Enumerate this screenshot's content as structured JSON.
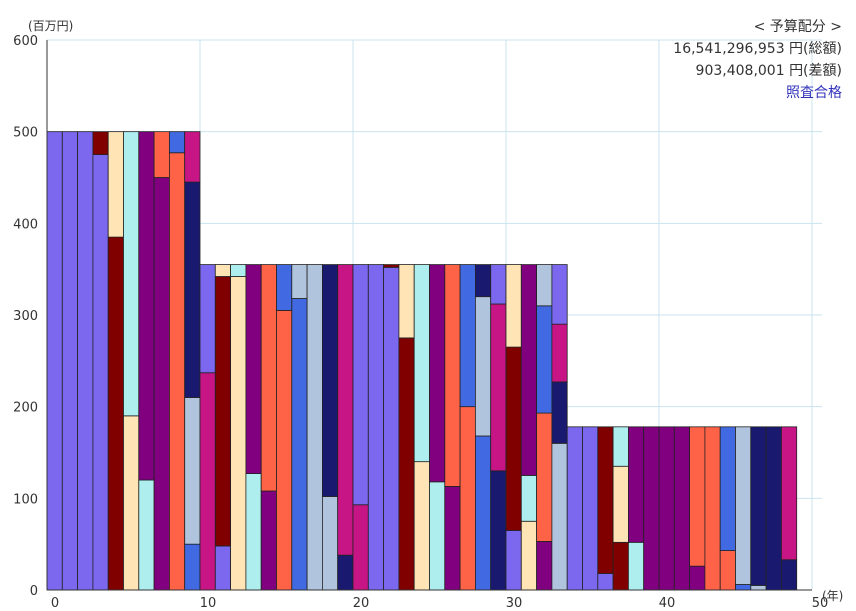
{
  "chart_data": {
    "type": "bar",
    "stacked": true,
    "y_unit": "(百万円)",
    "x_unit": "(年)",
    "xlim": [
      0,
      50
    ],
    "ylim": [
      0,
      600
    ],
    "x_ticks": [
      0,
      10,
      20,
      30,
      40,
      50
    ],
    "y_ticks": [
      0,
      100,
      200,
      300,
      400,
      500,
      600
    ],
    "grid": true,
    "info": {
      "heading": "< 予算配分 >",
      "total": "16,541,296,953 円(総額)",
      "difference": "903,408,001 円(差額)",
      "status": "照査合格"
    },
    "bar_width": 1,
    "bars": [
      [
        {
          "v": 500,
          "c": "#7b68ee"
        }
      ],
      [
        {
          "v": 500,
          "c": "#7b68ee"
        }
      ],
      [
        {
          "v": 500,
          "c": "#7b68ee"
        }
      ],
      [
        {
          "v": 475,
          "c": "#7b68ee"
        },
        {
          "v": 25,
          "c": "#800000"
        }
      ],
      [
        {
          "v": 385,
          "c": "#800000"
        },
        {
          "v": 115,
          "c": "#ffe4b5"
        }
      ],
      [
        {
          "v": 190,
          "c": "#ffe4b5"
        },
        {
          "v": 310,
          "c": "#afeeee"
        }
      ],
      [
        {
          "v": 120,
          "c": "#afeeee"
        },
        {
          "v": 380,
          "c": "#800080"
        }
      ],
      [
        {
          "v": 450,
          "c": "#800080"
        },
        {
          "v": 50,
          "c": "#ff6347"
        }
      ],
      [
        {
          "v": 477,
          "c": "#ff6347"
        },
        {
          "v": 23,
          "c": "#4169e1"
        }
      ],
      [
        {
          "v": 50,
          "c": "#4169e1"
        },
        {
          "v": 160,
          "c": "#b0c4de"
        },
        {
          "v": 235,
          "c": "#191970"
        },
        {
          "v": 55,
          "c": "#c71585"
        }
      ],
      [
        {
          "v": 237,
          "c": "#c71585"
        },
        {
          "v": 118,
          "c": "#7b68ee"
        }
      ],
      [
        {
          "v": 48,
          "c": "#7b68ee"
        },
        {
          "v": 294,
          "c": "#800000"
        },
        {
          "v": 13,
          "c": "#ffe4b5"
        }
      ],
      [
        {
          "v": 342,
          "c": "#ffe4b5"
        },
        {
          "v": 13,
          "c": "#afeeee"
        }
      ],
      [
        {
          "v": 127,
          "c": "#afeeee"
        },
        {
          "v": 228,
          "c": "#800080"
        }
      ],
      [
        {
          "v": 108,
          "c": "#800080"
        },
        {
          "v": 247,
          "c": "#ff6347"
        }
      ],
      [
        {
          "v": 305,
          "c": "#ff6347"
        },
        {
          "v": 50,
          "c": "#4169e1"
        }
      ],
      [
        {
          "v": 318,
          "c": "#4169e1"
        },
        {
          "v": 37,
          "c": "#b0c4de"
        }
      ],
      [
        {
          "v": 355,
          "c": "#b0c4de"
        }
      ],
      [
        {
          "v": 102,
          "c": "#b0c4de"
        },
        {
          "v": 253,
          "c": "#191970"
        }
      ],
      [
        {
          "v": 38,
          "c": "#191970"
        },
        {
          "v": 317,
          "c": "#c71585"
        }
      ],
      [
        {
          "v": 93,
          "c": "#c71585"
        },
        {
          "v": 262,
          "c": "#7b68ee"
        }
      ],
      [
        {
          "v": 355,
          "c": "#7b68ee"
        }
      ],
      [
        {
          "v": 352,
          "c": "#7b68ee"
        },
        {
          "v": 3,
          "c": "#800000"
        }
      ],
      [
        {
          "v": 275,
          "c": "#800000"
        },
        {
          "v": 80,
          "c": "#ffe4b5"
        }
      ],
      [
        {
          "v": 140,
          "c": "#ffe4b5"
        },
        {
          "v": 215,
          "c": "#afeeee"
        }
      ],
      [
        {
          "v": 118,
          "c": "#afeeee"
        },
        {
          "v": 237,
          "c": "#800080"
        }
      ],
      [
        {
          "v": 113,
          "c": "#800080"
        },
        {
          "v": 242,
          "c": "#ff6347"
        }
      ],
      [
        {
          "v": 200,
          "c": "#ff6347"
        },
        {
          "v": 155,
          "c": "#4169e1"
        }
      ],
      [
        {
          "v": 168,
          "c": "#4169e1"
        },
        {
          "v": 152,
          "c": "#b0c4de"
        },
        {
          "v": 35,
          "c": "#191970"
        }
      ],
      [
        {
          "v": 130,
          "c": "#191970"
        },
        {
          "v": 182,
          "c": "#c71585"
        },
        {
          "v": 43,
          "c": "#7b68ee"
        }
      ],
      [
        {
          "v": 65,
          "c": "#7b68ee"
        },
        {
          "v": 200,
          "c": "#800000"
        },
        {
          "v": 90,
          "c": "#ffe4b5"
        }
      ],
      [
        {
          "v": 75,
          "c": "#ffe4b5"
        },
        {
          "v": 50,
          "c": "#afeeee"
        },
        {
          "v": 230,
          "c": "#800080"
        }
      ],
      [
        {
          "v": 53,
          "c": "#800080"
        },
        {
          "v": 140,
          "c": "#ff6347"
        },
        {
          "v": 117,
          "c": "#4169e1"
        },
        {
          "v": 45,
          "c": "#b0c4de"
        }
      ],
      [
        {
          "v": 160,
          "c": "#b0c4de"
        },
        {
          "v": 67,
          "c": "#191970"
        },
        {
          "v": 63,
          "c": "#c71585"
        },
        {
          "v": 65,
          "c": "#7b68ee"
        }
      ],
      [
        {
          "v": 178,
          "c": "#7b68ee"
        }
      ],
      [
        {
          "v": 178,
          "c": "#7b68ee"
        }
      ],
      [
        {
          "v": 18,
          "c": "#7b68ee"
        },
        {
          "v": 160,
          "c": "#800000"
        }
      ],
      [
        {
          "v": 52,
          "c": "#800000"
        },
        {
          "v": 83,
          "c": "#ffe4b5"
        },
        {
          "v": 43,
          "c": "#afeeee"
        }
      ],
      [
        {
          "v": 52,
          "c": "#afeeee"
        },
        {
          "v": 126,
          "c": "#800080"
        }
      ],
      [
        {
          "v": 178,
          "c": "#800080"
        }
      ],
      [
        {
          "v": 178,
          "c": "#800080"
        }
      ],
      [
        {
          "v": 178,
          "c": "#800080"
        }
      ],
      [
        {
          "v": 26,
          "c": "#800080"
        },
        {
          "v": 152,
          "c": "#ff6347"
        }
      ],
      [
        {
          "v": 178,
          "c": "#ff6347"
        }
      ],
      [
        {
          "v": 43,
          "c": "#ff6347"
        },
        {
          "v": 135,
          "c": "#4169e1"
        }
      ],
      [
        {
          "v": 6,
          "c": "#4169e1"
        },
        {
          "v": 172,
          "c": "#b0c4de"
        }
      ],
      [
        {
          "v": 5,
          "c": "#b0c4de"
        },
        {
          "v": 173,
          "c": "#191970"
        }
      ],
      [
        {
          "v": 178,
          "c": "#191970"
        }
      ],
      [
        {
          "v": 33,
          "c": "#191970"
        },
        {
          "v": 145,
          "c": "#c71585"
        }
      ]
    ]
  }
}
